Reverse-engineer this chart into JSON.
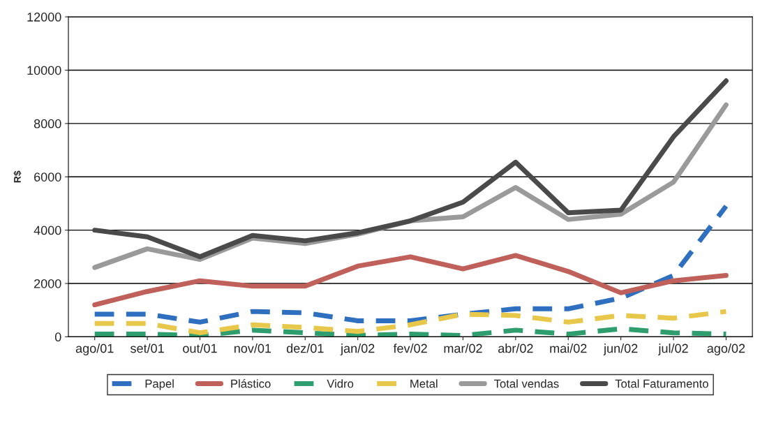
{
  "chart_data": {
    "type": "line",
    "ylabel": "R$",
    "categories": [
      "ago/01",
      "set/01",
      "out/01",
      "nov/01",
      "dez/01",
      "jan/02",
      "fev/02",
      "mar/02",
      "abr/02",
      "mai/02",
      "jun/02",
      "jul/02",
      "ago/02"
    ],
    "series": [
      {
        "name": "Papel",
        "color": "#2f6fbf",
        "line_style": "dashed",
        "values": [
          850,
          850,
          550,
          950,
          900,
          600,
          600,
          850,
          1050,
          1050,
          1450,
          2300,
          4900
        ]
      },
      {
        "name": "Plástico",
        "color": "#c0605a",
        "line_style": "solid",
        "values": [
          1200,
          1700,
          2100,
          1900,
          1900,
          2650,
          3000,
          2550,
          3050,
          2450,
          1650,
          2100,
          2300
        ]
      },
      {
        "name": "Vidro",
        "color": "#2e9e6e",
        "line_style": "dashed",
        "values": [
          100,
          100,
          50,
          250,
          150,
          50,
          100,
          50,
          250,
          100,
          300,
          150,
          100
        ]
      },
      {
        "name": "Metal",
        "color": "#e8c84a",
        "line_style": "dashed",
        "values": [
          500,
          500,
          150,
          450,
          350,
          200,
          450,
          850,
          800,
          550,
          800,
          700,
          950
        ]
      },
      {
        "name": "Total vendas",
        "color": "#9a9a9a",
        "line_style": "solid",
        "values": [
          2600,
          3300,
          2900,
          3700,
          3500,
          3850,
          4350,
          4500,
          5600,
          4400,
          4600,
          5800,
          8700
        ]
      },
      {
        "name": "Total Faturamento",
        "color": "#4a4a4a",
        "line_style": "solid",
        "values": [
          4000,
          3750,
          3000,
          3800,
          3600,
          3900,
          4350,
          5050,
          6550,
          4650,
          4750,
          7500,
          9600
        ]
      }
    ],
    "ylim": [
      0,
      12000
    ],
    "yticks": [
      0,
      2000,
      4000,
      6000,
      8000,
      10000,
      12000
    ],
    "grid": "y",
    "legend": "bottom",
    "marker": "none"
  }
}
